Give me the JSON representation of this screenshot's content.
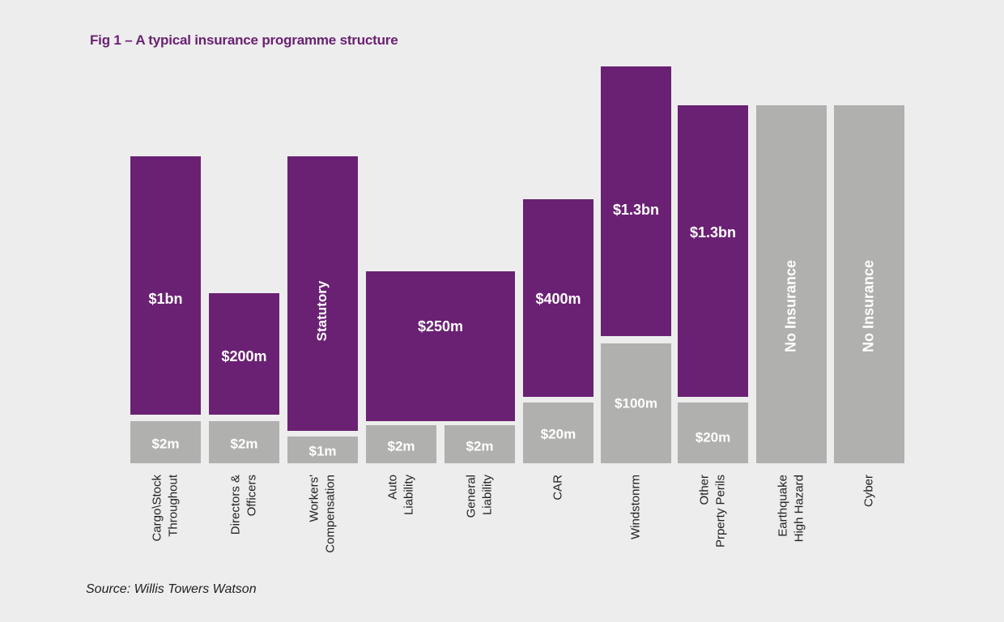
{
  "title": "Fig 1 – A typical insurance programme structure",
  "source": "Source: Willis Towers Watson",
  "colors": {
    "insured_layer": "#6a2173",
    "retention_or_uninsured": "#b0b0ae",
    "background": "#ededed"
  },
  "chart_data": {
    "type": "bar",
    "stacked": true,
    "scale": "non-linear (illustrative)",
    "columns": [
      {
        "category": [
          "Cargo\\Stock",
          "Throughout"
        ],
        "lower": {
          "label": "$2m"
        },
        "upper": {
          "label": "$1bn"
        }
      },
      {
        "category": [
          "Directors &",
          "Officers"
        ],
        "lower": {
          "label": "$2m"
        },
        "upper": {
          "label": "$200m"
        }
      },
      {
        "category": [
          "Workers'",
          "Compensation"
        ],
        "lower": {
          "label": "$1m"
        },
        "upper": {
          "label": "Statutory",
          "rotated": true
        }
      },
      {
        "category": [
          "Auto",
          "Liability"
        ],
        "lower": {
          "label": "$2m"
        },
        "upper": {
          "label": "$250m",
          "shared_with_next": true
        }
      },
      {
        "category": [
          "General",
          "Liability"
        ],
        "lower": {
          "label": "$2m"
        },
        "upper": null
      },
      {
        "category": [
          "CAR"
        ],
        "lower": {
          "label": "$20m"
        },
        "upper": {
          "label": "$400m"
        }
      },
      {
        "category": [
          "Windstonrm"
        ],
        "lower": {
          "label": "$100m"
        },
        "upper": {
          "label": "$1.3bn"
        }
      },
      {
        "category": [
          "Other",
          "Prperty Perils"
        ],
        "lower": {
          "label": "$20m"
        },
        "upper": {
          "label": "$1.3bn"
        }
      },
      {
        "category": [
          "Earthquake",
          "High Hazard"
        ],
        "lower": {
          "label": "No Insurance",
          "rotated": true,
          "full_height": true
        },
        "upper": null
      },
      {
        "category": [
          "Cyber"
        ],
        "lower": {
          "label": "No Insurance",
          "rotated": true,
          "full_height": true
        },
        "upper": null
      }
    ]
  }
}
